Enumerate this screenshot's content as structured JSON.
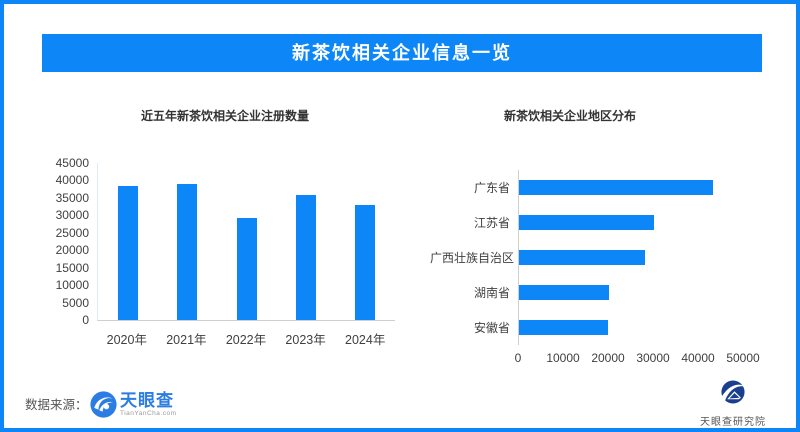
{
  "header": {
    "title": "新茶饮相关企业信息一览"
  },
  "colors": {
    "accent": "#0d86f7",
    "chart_title_text": "#333333",
    "axis_text": "#404040",
    "tianyancha_blue": "#2b7de3",
    "institute_navy": "#1b3e8e"
  },
  "chart_data": [
    {
      "type": "bar",
      "orientation": "vertical",
      "title": "近五年新茶饮相关企业注册数量",
      "categories": [
        "2020年",
        "2021年",
        "2022年",
        "2023年",
        "2024年"
      ],
      "values": [
        38300,
        38900,
        29200,
        35900,
        32900
      ],
      "xlabel": "",
      "ylabel": "",
      "ylim": [
        0,
        45000
      ],
      "ytick_step": 5000,
      "grid": false,
      "legend": false,
      "bar_color": "#0d86f7"
    },
    {
      "type": "bar",
      "orientation": "horizontal",
      "title": "新茶饮相关企业地区分布",
      "categories": [
        "广东省",
        "江苏省",
        "广西壮族自治区",
        "湖南省",
        "安徽省"
      ],
      "values": [
        43000,
        30000,
        28000,
        20000,
        19800
      ],
      "xlabel": "",
      "ylabel": "",
      "xlim": [
        0,
        50000
      ],
      "xtick_step": 10000,
      "grid": false,
      "legend": false,
      "bar_color": "#0d86f7"
    }
  ],
  "footer": {
    "source_label": "数据来源：",
    "tianyancha_name": "天眼查",
    "tianyancha_domain": "TianYanCha.com",
    "institute_name": "天眼查研究院",
    "icons": {
      "tianyancha_eye": "eye-swirl-circle",
      "institute_logo": "swoosh-mountain-circle"
    }
  }
}
